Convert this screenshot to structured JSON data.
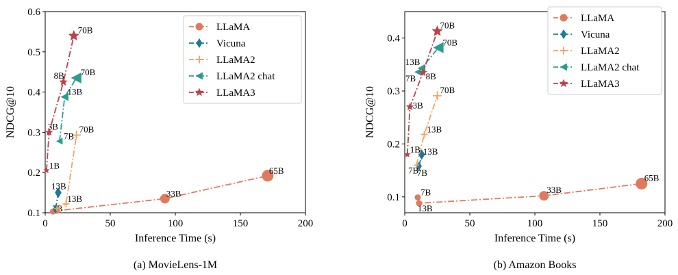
{
  "chart_data": [
    {
      "type": "line",
      "caption": "(a)  MovieLens-1M",
      "xlabel": "Inference Time (s)",
      "ylabel": "NDCG@10",
      "xlim": [
        0,
        200
      ],
      "ylim": [
        0.1,
        0.6
      ],
      "xticks": [
        0,
        50,
        100,
        150,
        200
      ],
      "yticks": [
        0.1,
        0.2,
        0.3,
        0.4,
        0.5,
        0.6
      ],
      "legend_position": "top-right",
      "series": [
        {
          "name": "LLaMA",
          "color": "#E07A5F",
          "marker": "circle",
          "points": [
            {
              "x": 6,
              "y": 0.103,
              "label": "7B"
            },
            {
              "x": 9,
              "y": 0.105,
              "label": ""
            },
            {
              "x": 92,
              "y": 0.135,
              "label": "33B"
            },
            {
              "x": 171,
              "y": 0.192,
              "label": "65B"
            }
          ]
        },
        {
          "name": "Vicuna",
          "color": "#1B7A9A",
          "marker": "diamond",
          "points": [
            {
              "x": 8,
              "y": 0.109,
              "label": ""
            },
            {
              "x": 10,
              "y": 0.15,
              "label": "13B"
            }
          ]
        },
        {
          "name": "LLaMA2",
          "color": "#F4A261",
          "marker": "plus",
          "points": [
            {
              "x": 9,
              "y": 0.11,
              "label": ""
            },
            {
              "x": 16,
              "y": 0.122,
              "label": "13B"
            },
            {
              "x": 24,
              "y": 0.293,
              "label": "70B"
            }
          ]
        },
        {
          "name": "LLaMA2 chat",
          "color": "#2A9D8F",
          "marker": "triangle-left",
          "points": [
            {
              "x": 11,
              "y": 0.278,
              "label": "7B"
            },
            {
              "x": 15,
              "y": 0.388,
              "label": "13B"
            },
            {
              "x": 24,
              "y": 0.435,
              "label": "70B"
            }
          ]
        },
        {
          "name": "LLaMA3",
          "color": "#C0404A",
          "marker": "star",
          "points": [
            {
              "x": 1,
              "y": 0.205,
              "label": "1B"
            },
            {
              "x": 3,
              "y": 0.3,
              "label": "3B"
            },
            {
              "x": 14,
              "y": 0.425,
              "label": "8B"
            },
            {
              "x": 22,
              "y": 0.54,
              "label": "70B"
            }
          ]
        }
      ]
    },
    {
      "type": "line",
      "caption": "(b)  Amazon Books",
      "xlabel": "Inference Time (s)",
      "ylabel": "NDCG@10",
      "xlim": [
        0,
        200
      ],
      "ylim": [
        0.07,
        0.45
      ],
      "xticks": [
        0,
        50,
        100,
        150,
        200
      ],
      "yticks": [
        0.1,
        0.2,
        0.3,
        0.4
      ],
      "legend_position": "top-right",
      "series": [
        {
          "name": "LLaMA",
          "color": "#E07A5F",
          "marker": "circle",
          "points": [
            {
              "x": 10,
              "y": 0.099,
              "label": "7B"
            },
            {
              "x": 11,
              "y": 0.088,
              "label": "13B"
            },
            {
              "x": 107,
              "y": 0.102,
              "label": "33B"
            },
            {
              "x": 182,
              "y": 0.125,
              "label": "65B"
            }
          ]
        },
        {
          "name": "Vicuna",
          "color": "#1B7A9A",
          "marker": "diamond",
          "points": [
            {
              "x": 11,
              "y": 0.158,
              "label": "7B"
            },
            {
              "x": 13,
              "y": 0.18,
              "label": "13B"
            }
          ]
        },
        {
          "name": "LLaMA2",
          "color": "#F4A261",
          "marker": "plus",
          "points": [
            {
              "x": 9,
              "y": 0.16,
              "label": "7B"
            },
            {
              "x": 15,
              "y": 0.218,
              "label": "13B"
            },
            {
              "x": 25,
              "y": 0.291,
              "label": "70B"
            }
          ]
        },
        {
          "name": "LLaMA2 chat",
          "color": "#2A9D8F",
          "marker": "triangle-left",
          "points": [
            {
              "x": 10,
              "y": 0.336,
              "label": "7B"
            },
            {
              "x": 13,
              "y": 0.343,
              "label": "13B"
            },
            {
              "x": 26,
              "y": 0.382,
              "label": "70B"
            }
          ]
        },
        {
          "name": "LLaMA3",
          "color": "#C0404A",
          "marker": "star",
          "points": [
            {
              "x": 2,
              "y": 0.18,
              "label": "1B"
            },
            {
              "x": 4,
              "y": 0.27,
              "label": "3B"
            },
            {
              "x": 14,
              "y": 0.335,
              "label": "8B"
            },
            {
              "x": 25,
              "y": 0.413,
              "label": "70B"
            }
          ]
        }
      ]
    }
  ]
}
